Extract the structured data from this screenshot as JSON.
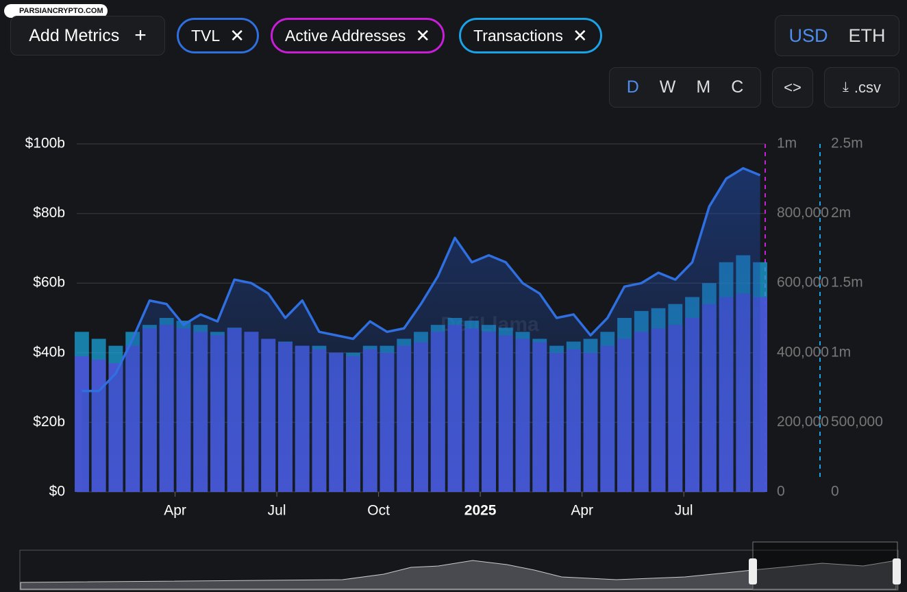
{
  "logo": "PARSIANCRYPTO.COM",
  "controls": {
    "add_metrics": "Add Metrics",
    "currencies": [
      "USD",
      "ETH"
    ],
    "periods": [
      "D",
      "W",
      "M",
      "C"
    ],
    "csv": ".csv"
  },
  "watermark": "DefiLlama",
  "chart_data": {
    "type": "combo",
    "x": [
      0.25,
      0.75,
      1.25,
      1.75,
      2.25,
      2.75,
      3.25,
      3.75,
      4.25,
      4.75,
      5.25,
      5.75,
      6.25,
      6.75,
      7.25,
      7.75,
      8.25,
      8.75,
      9.25,
      9.75,
      10.25,
      10.75,
      11.25,
      11.75,
      12.25,
      12.75,
      13.25,
      13.75,
      14.25,
      14.75,
      15.25,
      15.75,
      16.25,
      16.75,
      17.25,
      17.75,
      18.25,
      18.75,
      19.25,
      19.75,
      20.25
    ],
    "xlim": [
      0.1,
      20.4
    ],
    "xticks": [
      {
        "value": 3,
        "label": "Apr"
      },
      {
        "value": 6,
        "label": "Jul"
      },
      {
        "value": 9,
        "label": "Oct"
      },
      {
        "value": 12,
        "label": "2025"
      },
      {
        "value": 15,
        "label": "Apr"
      },
      {
        "value": 18,
        "label": "Jul"
      }
    ],
    "ylim": [
      0,
      100
    ],
    "yticks": [
      {
        "value": 0,
        "label": "$0"
      },
      {
        "value": 20,
        "label": "$20b"
      },
      {
        "value": 40,
        "label": "$40b"
      },
      {
        "value": 60,
        "label": "$60b"
      },
      {
        "value": 80,
        "label": "$80b"
      },
      {
        "value": 100,
        "label": "$100b"
      }
    ],
    "y2lim": [
      0,
      1000000
    ],
    "y2ticks": [
      0,
      {
        "value": 200000,
        "label": "200,000"
      },
      {
        "value": 400000,
        "label": "400,000"
      },
      {
        "value": 600000,
        "label": "600,000"
      },
      {
        "value": 800000,
        "label": "800,000"
      },
      {
        "value": 1000000,
        "label": "1m"
      }
    ],
    "y3lim": [
      0,
      2500000
    ],
    "y3ticks": [
      0,
      {
        "value": 500000,
        "label": "500,000"
      },
      {
        "value": 1000000,
        "label": "1m"
      },
      {
        "value": 1500000,
        "label": "1.5m"
      },
      {
        "value": 2000000,
        "label": "2m"
      },
      {
        "value": 2500000,
        "label": "2.5m"
      }
    ],
    "grid": true,
    "series": [
      {
        "name": "TVL",
        "color": "#2f6fe0",
        "kind": "area",
        "axis": "y",
        "values": [
          29,
          29,
          34,
          44,
          55,
          54,
          48,
          51,
          49,
          61,
          60,
          57,
          50,
          55,
          46,
          45,
          44,
          49,
          46,
          47,
          54,
          62,
          73,
          66,
          68,
          66,
          60,
          57,
          50,
          51,
          45,
          50,
          59,
          60,
          63,
          61,
          66,
          82,
          90,
          93,
          91
        ]
      },
      {
        "name": "Active Addresses",
        "color": "#4f4fd8",
        "kind": "bar",
        "axis": "y2",
        "values": [
          390000,
          380000,
          370000,
          420000,
          470000,
          480000,
          470000,
          460000,
          450000,
          470000,
          460000,
          440000,
          430000,
          420000,
          410000,
          400000,
          390000,
          410000,
          400000,
          420000,
          430000,
          460000,
          480000,
          470000,
          460000,
          450000,
          440000,
          430000,
          400000,
          410000,
          400000,
          420000,
          440000,
          460000,
          470000,
          480000,
          500000,
          540000,
          560000,
          570000,
          560000
        ]
      },
      {
        "name": "Transactions",
        "color": "#1aa3d9",
        "kind": "bar",
        "axis": "y3",
        "values": [
          1150000,
          1100000,
          1050000,
          1150000,
          1200000,
          1250000,
          1230000,
          1200000,
          1150000,
          1180000,
          1150000,
          1100000,
          1080000,
          1050000,
          1050000,
          1000000,
          1000000,
          1050000,
          1050000,
          1100000,
          1150000,
          1200000,
          1250000,
          1230000,
          1200000,
          1180000,
          1150000,
          1100000,
          1050000,
          1080000,
          1100000,
          1150000,
          1250000,
          1300000,
          1320000,
          1350000,
          1400000,
          1500000,
          1650000,
          1700000,
          1650000
        ]
      }
    ]
  }
}
